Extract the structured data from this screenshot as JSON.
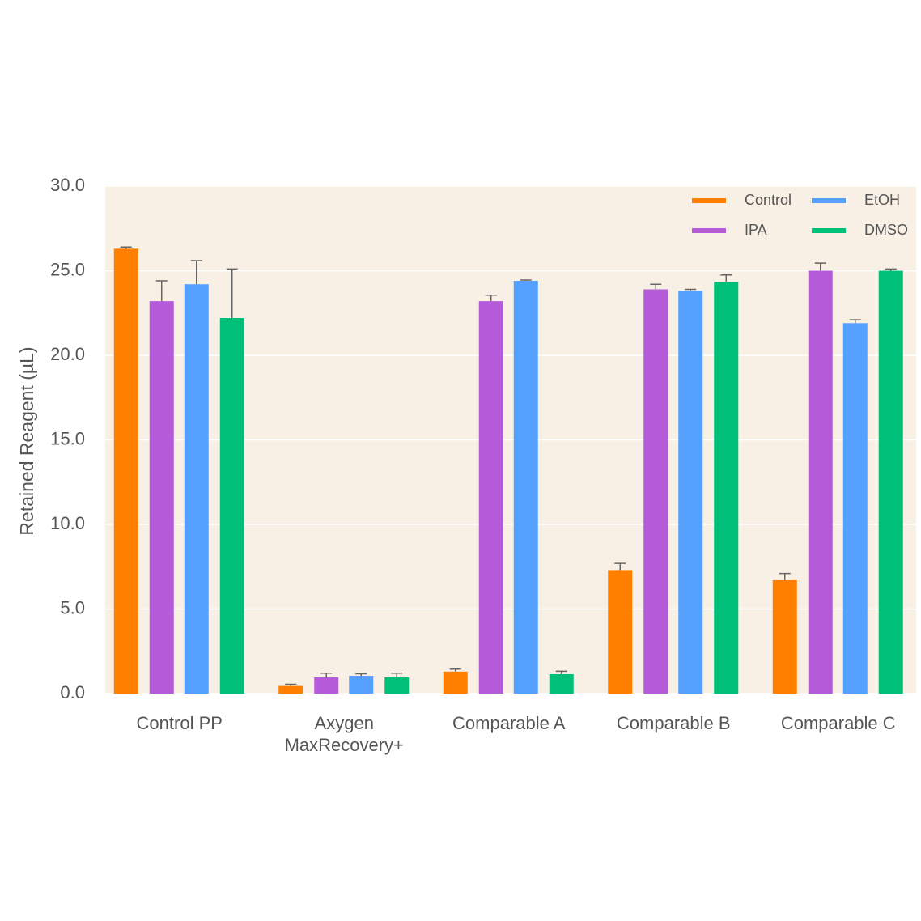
{
  "chart_data": {
    "type": "bar",
    "y_label": "Retained Reagent (µL)",
    "categories": [
      "Control PP",
      "Axygen\nMaxRecovery+",
      "Comparable A",
      "Comparable B",
      "Comparable C"
    ],
    "series": [
      {
        "name": "Control",
        "color": "#ff7f00",
        "values": [
          26.3,
          0.45,
          1.3,
          7.3,
          6.7
        ],
        "errors": [
          0.1,
          0.1,
          0.15,
          0.4,
          0.4
        ]
      },
      {
        "name": "IPA",
        "color": "#b55ad9",
        "values": [
          23.2,
          0.96,
          23.2,
          23.9,
          25.0
        ],
        "errors": [
          1.2,
          0.25,
          0.35,
          0.3,
          0.45
        ]
      },
      {
        "name": "EtOH",
        "color": "#54a0ff",
        "values": [
          24.2,
          1.05,
          24.4,
          23.8,
          21.9
        ],
        "errors": [
          1.4,
          0.12,
          0.05,
          0.1,
          0.2
        ]
      },
      {
        "name": "DMSO",
        "color": "#00bf78",
        "values": [
          22.2,
          0.96,
          1.15,
          24.35,
          25.0
        ],
        "errors": [
          2.9,
          0.25,
          0.17,
          0.4,
          0.1
        ]
      }
    ],
    "ylim": [
      0,
      30
    ],
    "yticks": [
      {
        "value": 0,
        "label": "0.0"
      },
      {
        "value": 5,
        "label": "5.0"
      },
      {
        "value": 10,
        "label": "10.0"
      },
      {
        "value": 15,
        "label": "15.0"
      },
      {
        "value": 20,
        "label": "20.0"
      },
      {
        "value": 25,
        "label": "25.0"
      },
      {
        "value": 30,
        "label": "30.0"
      }
    ],
    "grid": true,
    "legend": "upper right"
  }
}
